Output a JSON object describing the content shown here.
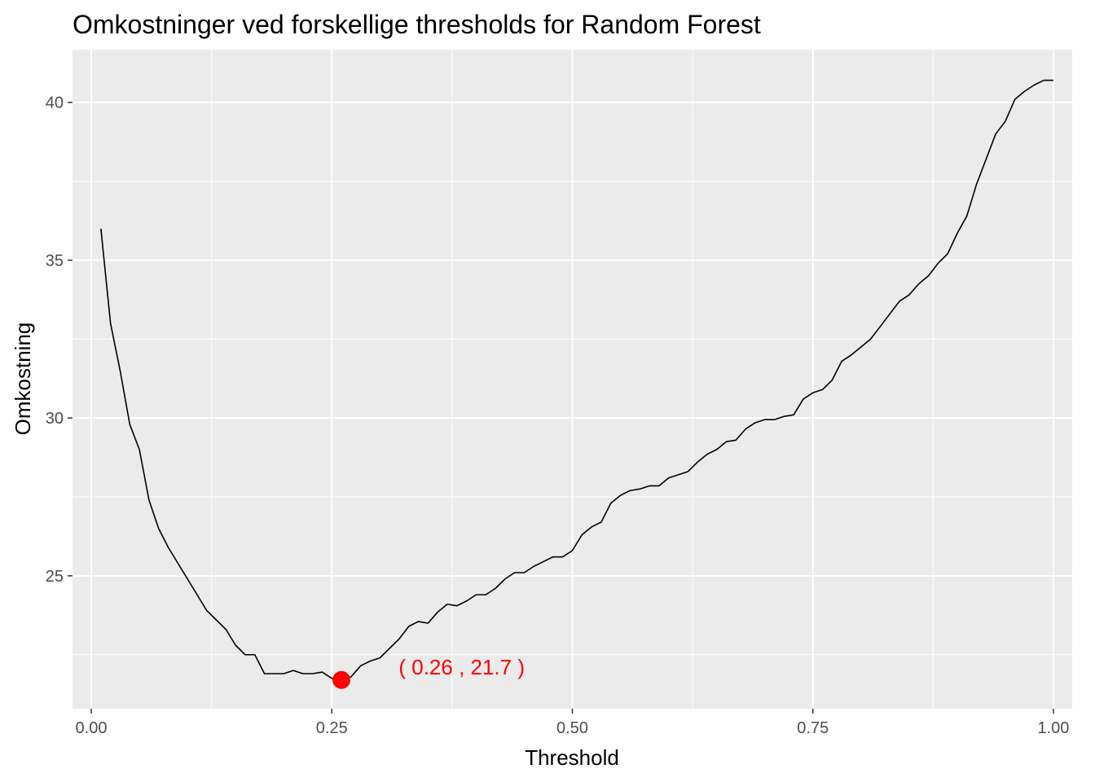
{
  "chart_data": {
    "type": "line",
    "title": "Omkostninger ved forskellige thresholds for Random Forest",
    "xlabel": "Threshold",
    "ylabel": "Omkostning",
    "xlim": [
      -0.0195,
      1.0195
    ],
    "ylim": [
      20.79,
      41.67
    ],
    "x_ticks": [
      0,
      0.25,
      0.5,
      0.75,
      1
    ],
    "x_tick_labels": [
      "0.00",
      "0.25",
      "0.50",
      "0.75",
      "1.00"
    ],
    "y_ticks": [
      25,
      30,
      35,
      40
    ],
    "y_tick_labels": [
      "25",
      "30",
      "35",
      "40"
    ],
    "grid": true,
    "legend": "none",
    "colors": {
      "panel": "#ebebeb",
      "grid": "#ffffff",
      "line": "#000000",
      "highlight": "#ff0000"
    },
    "series": [
      {
        "x": [
          0.01,
          0.02,
          0.03,
          0.04,
          0.05,
          0.06,
          0.07,
          0.08,
          0.09,
          0.1,
          0.11,
          0.12,
          0.13,
          0.14,
          0.15,
          0.16,
          0.17,
          0.18,
          0.19,
          0.2,
          0.21,
          0.22,
          0.23,
          0.24,
          0.25,
          0.26,
          0.27,
          0.28,
          0.29,
          0.3,
          0.31,
          0.32,
          0.33,
          0.34,
          0.35,
          0.36,
          0.37,
          0.38,
          0.39,
          0.4,
          0.41,
          0.42,
          0.43,
          0.44,
          0.45,
          0.46,
          0.47,
          0.48,
          0.49,
          0.5,
          0.51,
          0.52,
          0.53,
          0.54,
          0.55,
          0.56,
          0.57,
          0.58,
          0.59,
          0.6,
          0.61,
          0.62,
          0.63,
          0.64,
          0.65,
          0.66,
          0.67,
          0.68,
          0.69,
          0.7,
          0.71,
          0.72,
          0.73,
          0.74,
          0.75,
          0.76,
          0.77,
          0.78,
          0.79,
          0.8,
          0.81,
          0.82,
          0.83,
          0.84,
          0.85,
          0.86,
          0.87,
          0.88,
          0.89,
          0.9,
          0.91,
          0.92,
          0.93,
          0.94,
          0.95,
          0.96,
          0.97,
          0.98,
          0.99,
          1.0
        ],
        "y": [
          36.0,
          33.0,
          31.5,
          29.8,
          29.0,
          27.4,
          26.5,
          25.9,
          25.4,
          24.9,
          24.4,
          23.9,
          23.6,
          23.3,
          22.8,
          22.5,
          22.5,
          21.9,
          21.9,
          21.9,
          22.0,
          21.9,
          21.9,
          21.95,
          21.75,
          21.7,
          21.8,
          22.15,
          22.3,
          22.4,
          22.7,
          23.0,
          23.4,
          23.55,
          23.5,
          23.85,
          24.1,
          24.05,
          24.2,
          24.4,
          24.4,
          24.6,
          24.9,
          25.1,
          25.1,
          25.3,
          25.45,
          25.6,
          25.6,
          25.8,
          26.3,
          26.55,
          26.7,
          27.3,
          27.55,
          27.7,
          27.75,
          27.85,
          27.85,
          28.1,
          28.2,
          28.3,
          28.6,
          28.85,
          29.0,
          29.25,
          29.3,
          29.65,
          29.85,
          29.95,
          29.95,
          30.05,
          30.1,
          30.6,
          30.8,
          30.9,
          31.2,
          31.8,
          32.0,
          32.25,
          32.5,
          32.9,
          33.3,
          33.7,
          33.9,
          34.25,
          34.5,
          34.9,
          35.2,
          35.85,
          36.4,
          37.4,
          38.2,
          39.0,
          39.4,
          40.1,
          40.35,
          40.55,
          40.7,
          40.7
        ]
      }
    ],
    "highlight_point": {
      "x": 0.26,
      "y": 21.7
    },
    "annotation": {
      "text": "( 0.26 , 21.7 )",
      "x": 0.385,
      "y": 22.1
    }
  }
}
